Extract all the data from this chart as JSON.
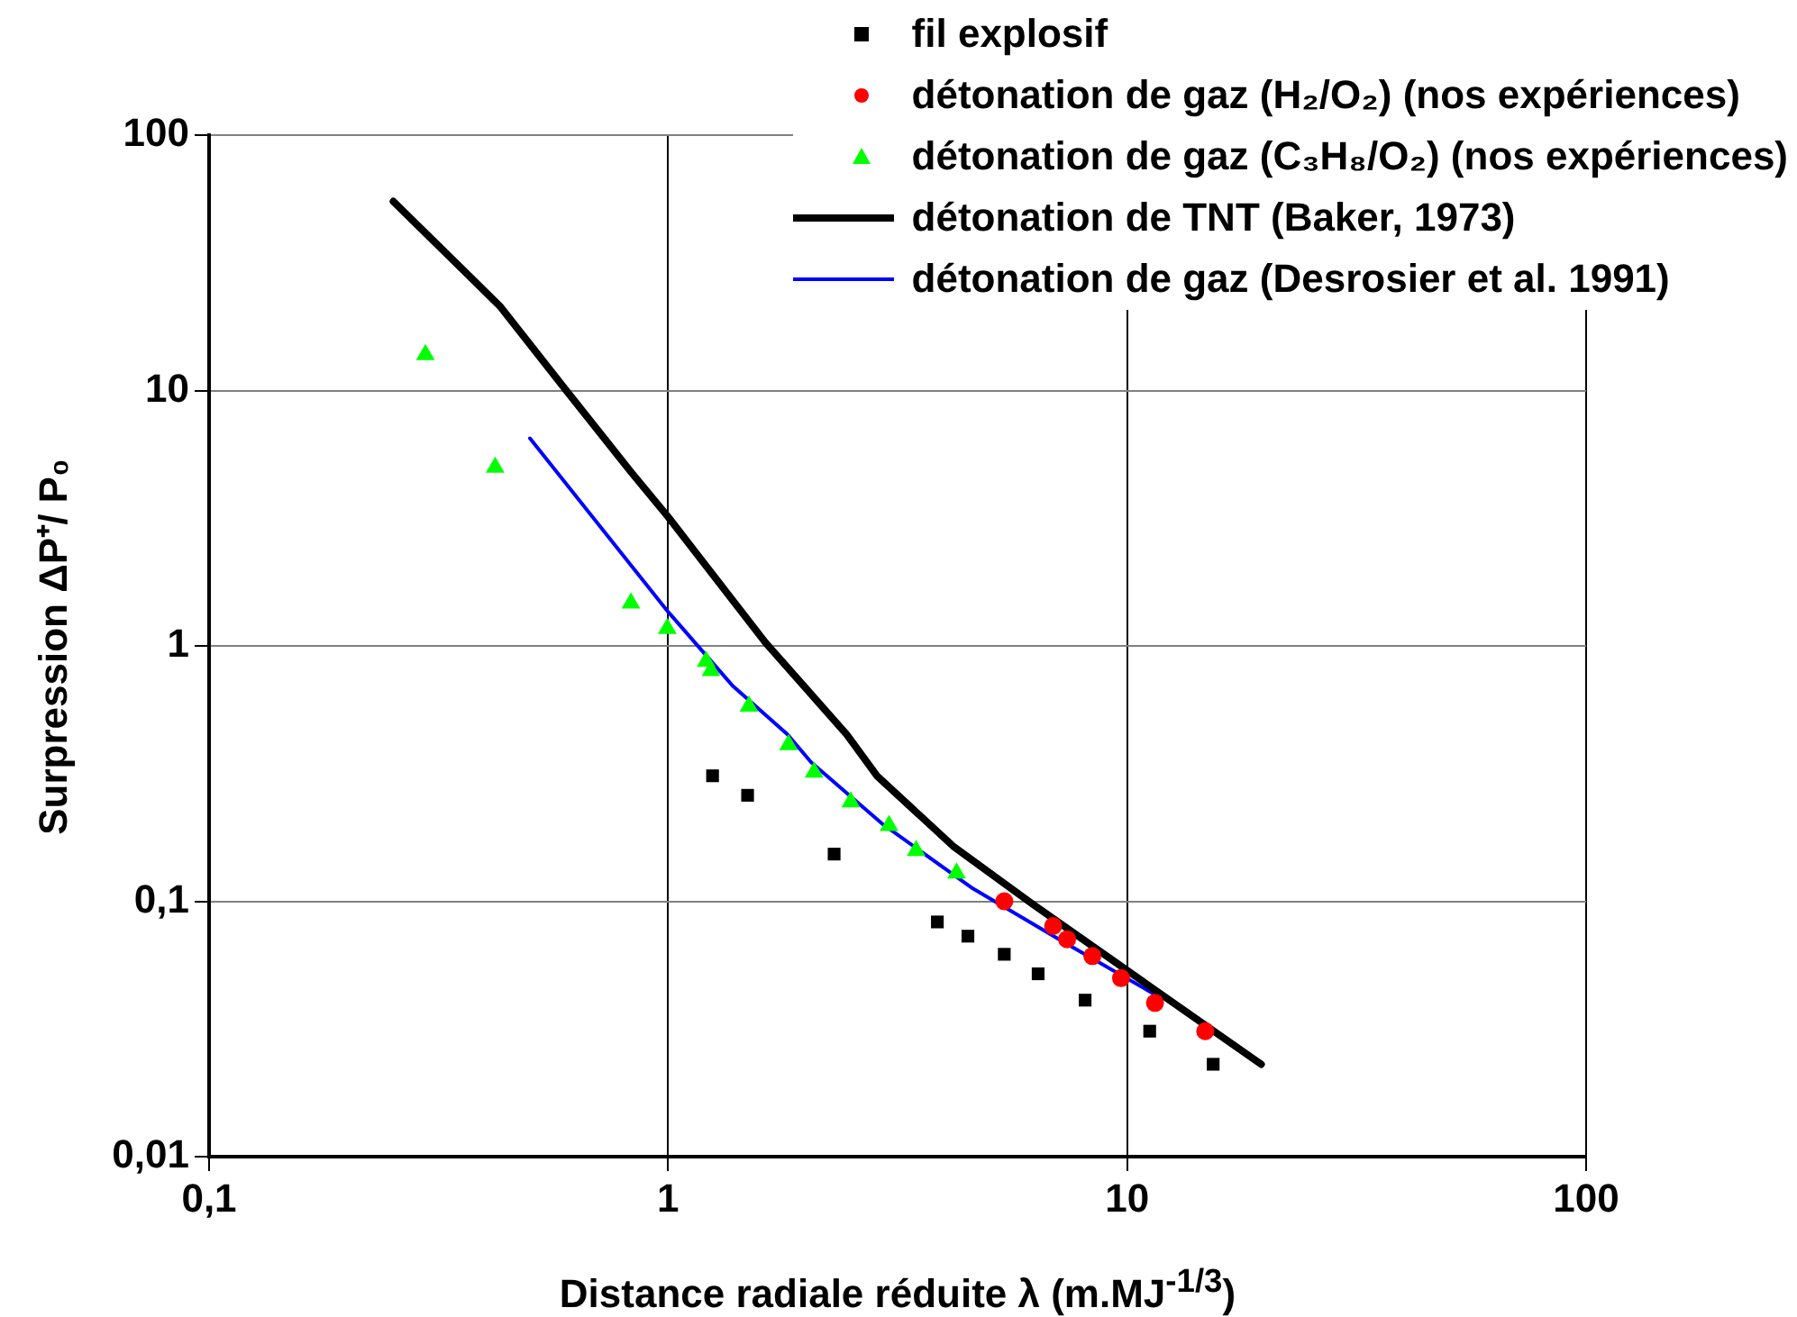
{
  "chart_data": {
    "type": "scatter",
    "xlabel": "Distance radiale réduite λ (m.MJ$^{-1/3}$)",
    "ylabel": "Surpression ΔP⁺/ P₀",
    "log": "xy",
    "grid": true,
    "legend": "top right",
    "xlim": [
      0.1,
      100
    ],
    "ylim": [
      0.01,
      100
    ],
    "xticks": [
      {
        "value": 0.1,
        "label": "0,1"
      },
      1,
      10,
      100
    ],
    "yticks": [
      {
        "value": 0.01,
        "label": "0,01"
      },
      {
        "value": 0.1,
        "label": "0,1"
      },
      1,
      10,
      100
    ],
    "series": [
      {
        "name": "fil explosif",
        "type": "scatter",
        "marker": "square",
        "color": "#000000",
        "x": [
          1.25,
          1.49,
          2.3,
          3.86,
          4.5,
          5.4,
          6.4,
          8.1,
          11.2,
          15.4
        ],
        "values": [
          0.31,
          0.26,
          0.153,
          0.083,
          0.073,
          0.062,
          0.052,
          0.041,
          0.031,
          0.023
        ]
      },
      {
        "name": "détonation de gaz (H₂/O₂) (nos expériences)",
        "type": "scatter",
        "marker": "circle",
        "color": "#ff0000",
        "x": [
          5.4,
          6.9,
          7.4,
          8.4,
          9.7,
          11.5,
          14.8
        ],
        "values": [
          0.1,
          0.08,
          0.071,
          0.061,
          0.05,
          0.04,
          0.031
        ]
      },
      {
        "name": "détonation de gaz (C₃H₈/O₂) (nos expériences)",
        "type": "scatter",
        "marker": "triangle",
        "color": "#00ff00",
        "x": [
          0.296,
          0.42,
          0.83,
          0.996,
          1.21,
          1.24,
          1.5,
          1.83,
          2.08,
          2.5,
          3.03,
          3.47,
          4.25
        ],
        "values": [
          13.8,
          5,
          1.47,
          1.17,
          0.87,
          0.8,
          0.58,
          0.41,
          0.32,
          0.245,
          0.198,
          0.158,
          0.129
        ]
      },
      {
        "name": "détonation de TNT (Baker, 1973)",
        "type": "line",
        "marker": "none",
        "line_style": "solid",
        "color": "#000000",
        "x": [
          0.252,
          0.43,
          0.6,
          0.83,
          1.0,
          1.63,
          2.45,
          2.85,
          4.2,
          6.2,
          9.8,
          19.6
        ],
        "values": [
          55,
          21.4,
          10,
          4.8,
          3.2,
          1.03,
          0.45,
          0.31,
          0.163,
          0.098,
          0.055,
          0.023
        ]
      },
      {
        "name": "détonation de gaz (Desrosier et al. 1991)",
        "type": "line",
        "marker": "none",
        "line_style": "solid",
        "color": "#0000ff",
        "x": [
          0.5,
          1.0,
          1.38,
          1.82,
          2.05,
          2.94,
          4.62,
          7.3,
          11.8
        ],
        "values": [
          6.5,
          1.36,
          0.7,
          0.45,
          0.35,
          0.2,
          0.112,
          0.069,
          0.042
        ]
      }
    ]
  }
}
